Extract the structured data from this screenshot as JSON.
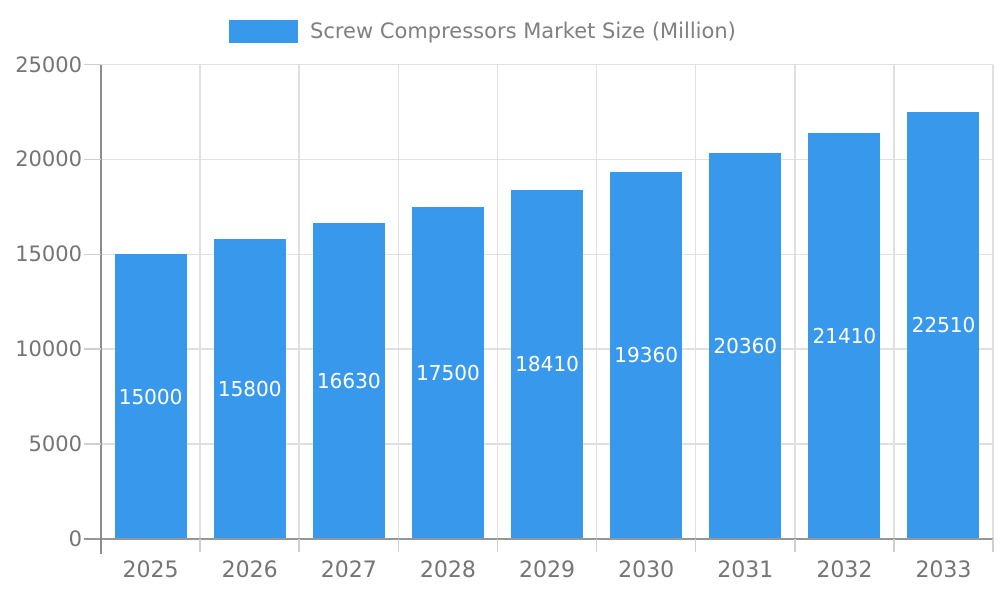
{
  "chart_data": {
    "type": "bar",
    "title": "Screw Compressors Market Size (Million)",
    "legend": [
      {
        "label": "Screw Compressors Market Size (Million)",
        "color": "#3898EC"
      }
    ],
    "legend_position": "top-center",
    "categories": [
      "2025",
      "2026",
      "2027",
      "2028",
      "2029",
      "2030",
      "2031",
      "2032",
      "2033"
    ],
    "series": [
      {
        "name": "Screw Compressors Market Size (Million)",
        "values": [
          15000,
          15800,
          16630,
          17500,
          18410,
          19360,
          20360,
          21410,
          22510
        ]
      }
    ],
    "value_labels": [
      "15000",
      "15800",
      "16630",
      "17500",
      "18410",
      "19360",
      "20360",
      "21410",
      "22510"
    ],
    "value_label_position": "inside-center",
    "xlabel": "",
    "ylabel": "",
    "ylim": [
      0,
      25000
    ],
    "ytick_step": 5000,
    "y_tick_labels": [
      "0",
      "5000",
      "10000",
      "15000",
      "20000",
      "25000"
    ],
    "grid": "horizontal-and-vertical",
    "colors": {
      "bar": "#3898EC",
      "grid_line": "#E0E0E0",
      "axis_line": "#969696",
      "tick": "#CFCFCF",
      "axis_label": "#757575",
      "legend_text": "#808080",
      "value_label": "#FFFFFF",
      "background": "#FFFFFF"
    }
  }
}
